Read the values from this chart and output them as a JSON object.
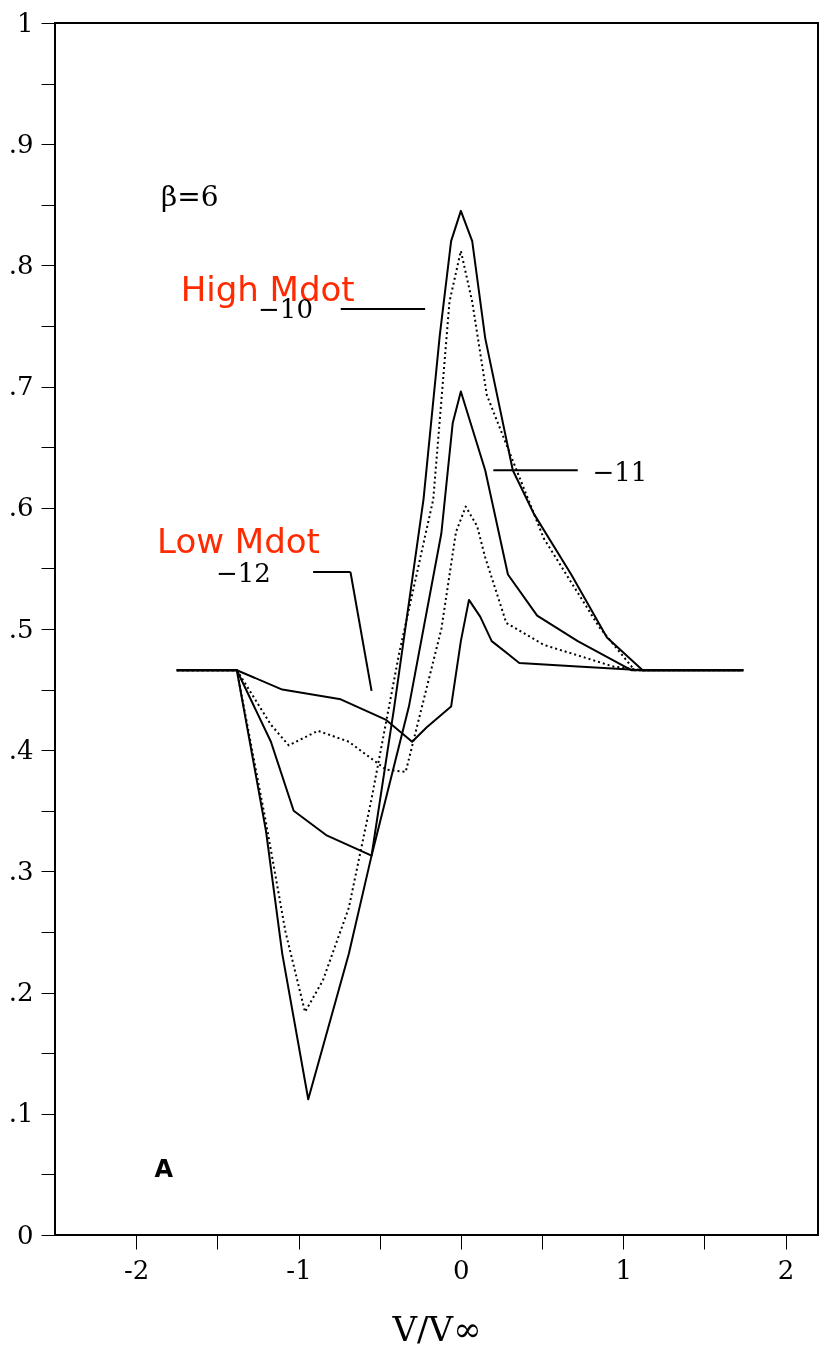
{
  "chart_data": {
    "type": "line",
    "xlabel": "V/V∞",
    "xlim": [
      -2.5,
      2.2
    ],
    "ylim": [
      0,
      1
    ],
    "xticks": [
      -2,
      {
        "value": -1.5,
        "label": null
      },
      -1,
      {
        "value": -0.5,
        "label": null
      },
      0,
      {
        "value": 0.5,
        "label": null
      },
      1,
      {
        "value": 1.5,
        "label": null
      },
      2
    ],
    "yticks": [
      0,
      {
        "value": 0.05,
        "label": null
      },
      {
        "value": 0.1,
        "label": ".1"
      },
      {
        "value": 0.15,
        "label": null
      },
      {
        "value": 0.2,
        "label": ".2"
      },
      {
        "value": 0.25,
        "label": null
      },
      {
        "value": 0.3,
        "label": ".3"
      },
      {
        "value": 0.35,
        "label": null
      },
      {
        "value": 0.4,
        "label": ".4"
      },
      {
        "value": 0.45,
        "label": null
      },
      {
        "value": 0.5,
        "label": ".5"
      },
      {
        "value": 0.55,
        "label": null
      },
      {
        "value": 0.6,
        "label": ".6"
      },
      {
        "value": 0.65,
        "label": null
      },
      {
        "value": 0.7,
        "label": ".7"
      },
      {
        "value": 0.75,
        "label": null
      },
      {
        "value": 0.8,
        "label": ".8"
      },
      {
        "value": 0.85,
        "label": null
      },
      {
        "value": 0.9,
        "label": ".9"
      },
      {
        "value": 0.95,
        "label": null
      },
      {
        "value": 1,
        "label": "1"
      }
    ],
    "grid": false,
    "marker": "none",
    "annotations": [
      "β=6",
      "High Mdot",
      "Low Mdot",
      "A",
      "−10",
      "−11",
      "−12"
    ],
    "series": [
      {
        "color": "#000000",
        "line_style": "solid",
        "x": [
          -1.75,
          -1.38,
          -1.2,
          -1.1,
          -0.94,
          -0.69,
          -0.55,
          -0.41,
          -0.23,
          -0.13,
          -0.06,
          0,
          0.07,
          0.15,
          0.32,
          0.45,
          0.68,
          0.9,
          1.12,
          1.74
        ],
        "values": [
          0.466,
          0.466,
          0.333,
          0.232,
          0.112,
          0.232,
          0.313,
          0.436,
          0.607,
          0.742,
          0.82,
          0.845,
          0.82,
          0.74,
          0.631,
          0.595,
          0.545,
          0.493,
          0.466,
          0.466
        ]
      },
      {
        "color": "#000000",
        "line_style": "dotted",
        "x": [
          -1.75,
          -1.38,
          -1.2,
          -1.08,
          -0.96,
          -0.85,
          -0.69,
          -0.55,
          -0.38,
          -0.17,
          -0.07,
          0,
          0.07,
          0.16,
          0.29,
          0.51,
          0.85,
          1.07,
          1.74
        ],
        "values": [
          0.466,
          0.466,
          0.34,
          0.25,
          0.184,
          0.21,
          0.27,
          0.36,
          0.48,
          0.607,
          0.77,
          0.812,
          0.77,
          0.693,
          0.649,
          0.575,
          0.502,
          0.466,
          0.466
        ]
      },
      {
        "color": "#000000",
        "line_style": "solid",
        "x": [
          -1.75,
          -1.38,
          -1.17,
          -1.03,
          -0.83,
          -0.55,
          -0.32,
          -0.12,
          -0.05,
          0,
          0.06,
          0.15,
          0.29,
          0.47,
          0.72,
          1.05,
          1.74
        ],
        "values": [
          0.466,
          0.466,
          0.407,
          0.35,
          0.33,
          0.313,
          0.436,
          0.579,
          0.67,
          0.696,
          0.67,
          0.631,
          0.545,
          0.511,
          0.49,
          0.466,
          0.466
        ]
      },
      {
        "color": "#000000",
        "line_style": "dotted",
        "x": [
          -1.75,
          -1.38,
          -1.17,
          -1.06,
          -0.88,
          -0.69,
          -0.46,
          -0.34,
          -0.12,
          -0.03,
          0.03,
          0.1,
          0.15,
          0.28,
          0.51,
          0.94,
          1.12,
          1.74
        ],
        "values": [
          0.466,
          0.466,
          0.421,
          0.404,
          0.416,
          0.407,
          0.384,
          0.382,
          0.5,
          0.58,
          0.601,
          0.585,
          0.559,
          0.505,
          0.487,
          0.469,
          0.466,
          0.466
        ]
      },
      {
        "color": "#000000",
        "line_style": "solid",
        "x": [
          -1.75,
          -1.38,
          -1.1,
          -0.74,
          -0.46,
          -0.3,
          -0.21,
          -0.06,
          0,
          0.05,
          0.12,
          0.19,
          0.36,
          0.72,
          1.12,
          1.74
        ],
        "values": [
          0.466,
          0.466,
          0.45,
          0.442,
          0.425,
          0.407,
          0.419,
          0.436,
          0.49,
          0.524,
          0.51,
          0.49,
          0.472,
          0.469,
          0.466,
          0.466
        ]
      }
    ]
  }
}
